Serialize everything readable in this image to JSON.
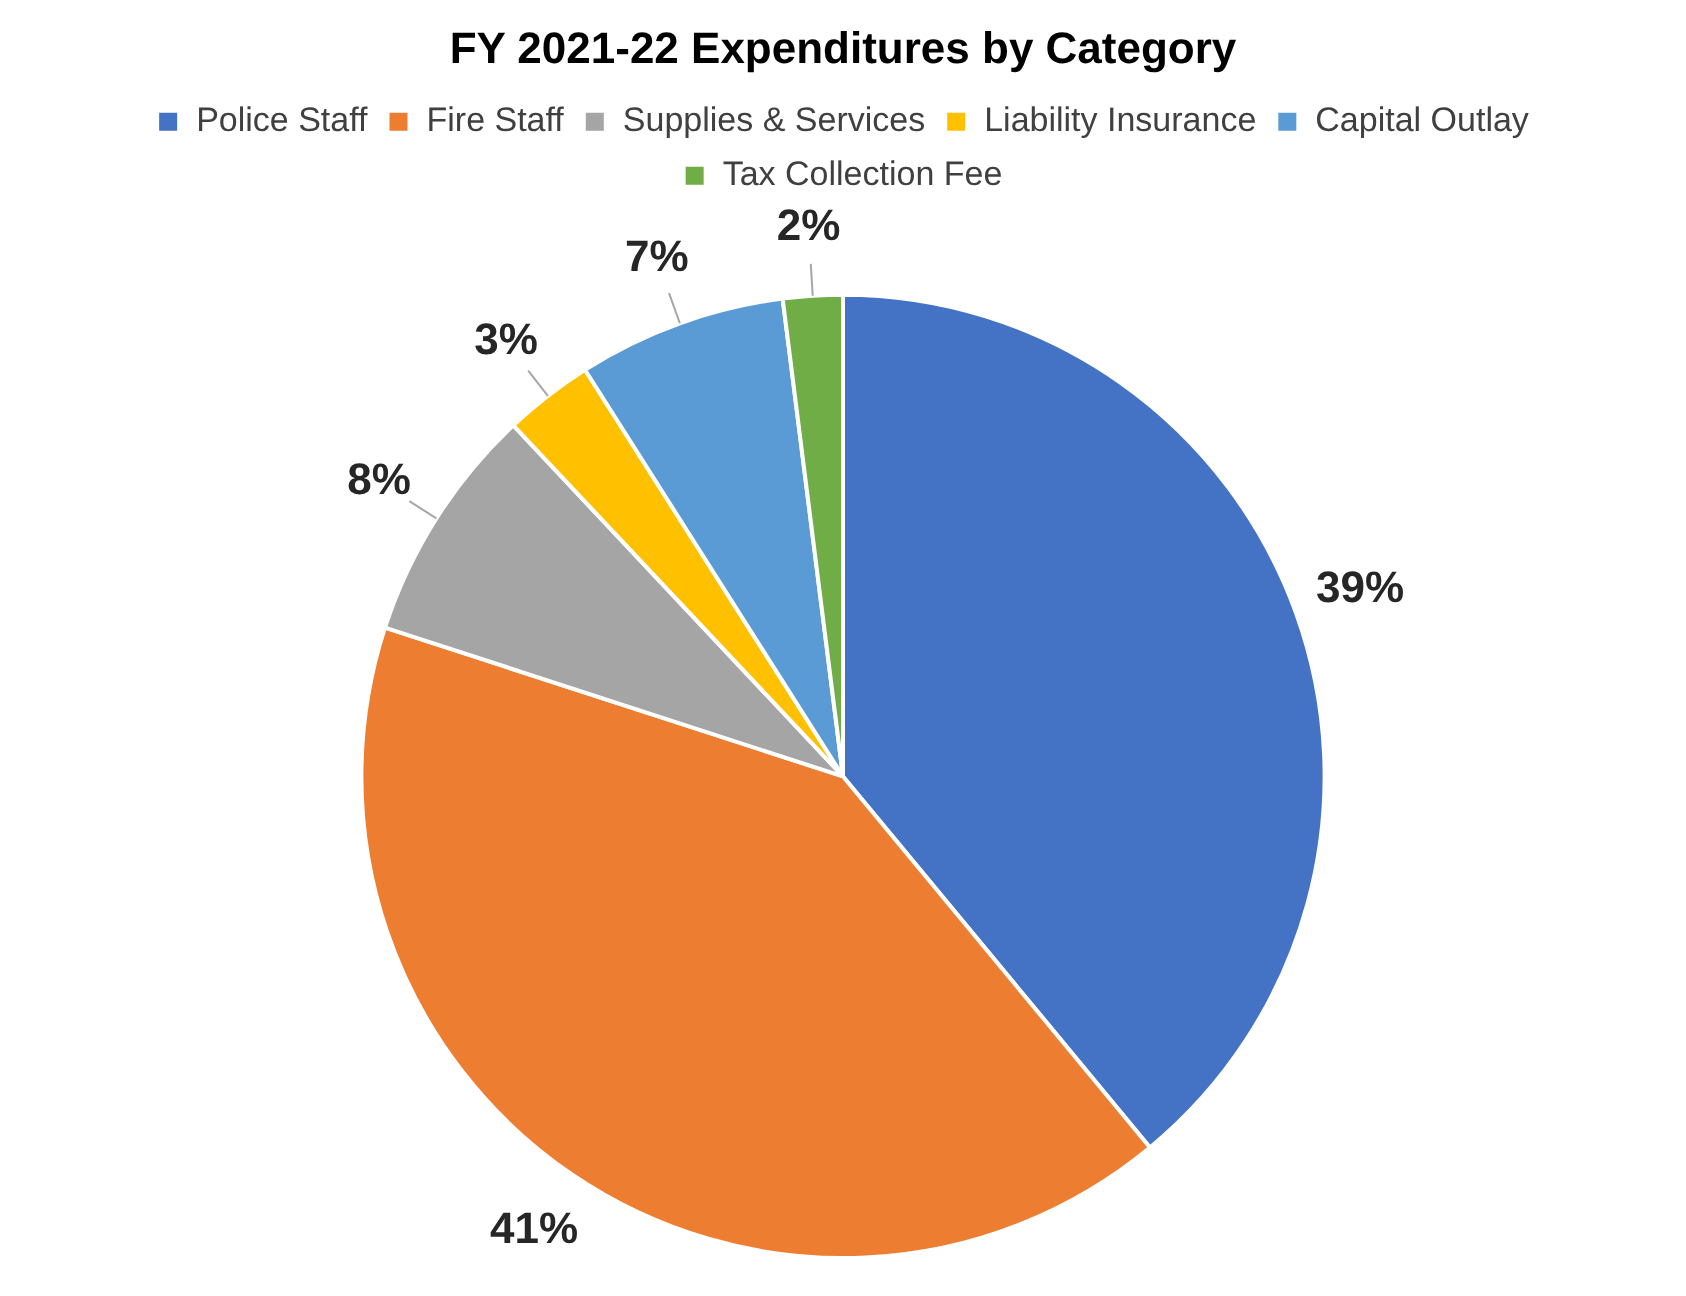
{
  "chart_data": {
    "type": "pie",
    "title": "FY 2021-22 Expenditures by Category",
    "categories": [
      "Police Staff",
      "Fire Staff",
      "Supplies & Services",
      "Liability Insurance",
      "Capital Outlay",
      "Tax Collection Fee"
    ],
    "values": [
      39,
      41,
      8,
      3,
      7,
      2
    ],
    "value_labels": [
      "39%",
      "41%",
      "8%",
      "3%",
      "7%",
      "2%"
    ],
    "colors": [
      "#4472c4",
      "#ed7d31",
      "#a5a5a5",
      "#ffc000",
      "#5b9bd5",
      "#70ad47"
    ],
    "legend": "top"
  }
}
